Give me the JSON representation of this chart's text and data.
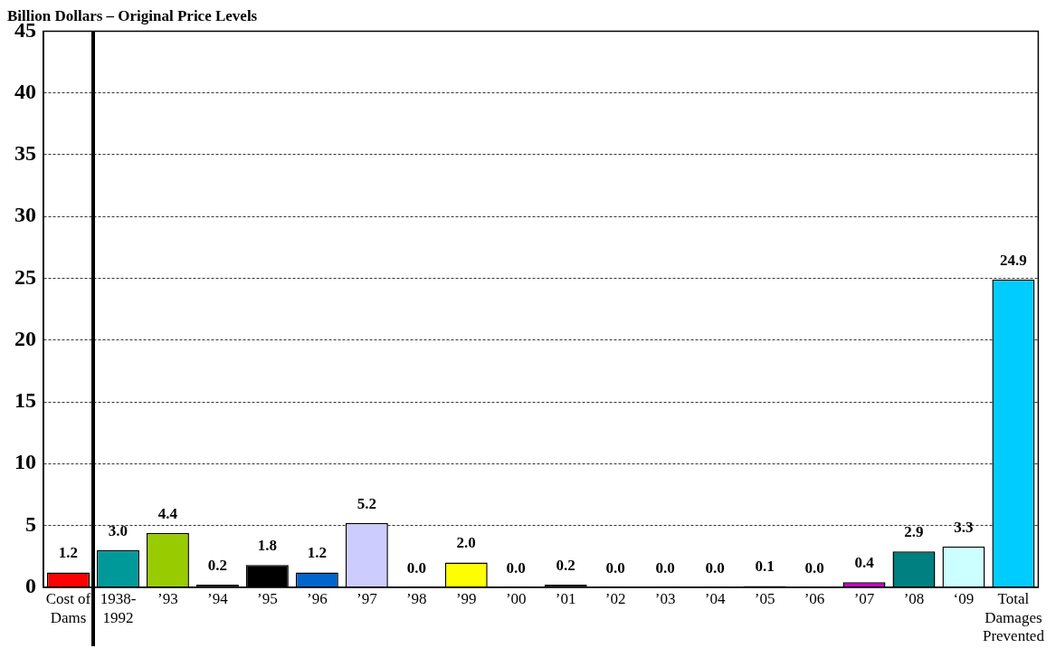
{
  "chart_data": {
    "type": "bar",
    "title": "Billion Dollars – Original Price Levels",
    "categories": [
      "Cost of Dams",
      "1938-1992",
      "’93",
      "’94",
      "’95",
      "’96",
      "’97",
      "’98",
      "’99",
      "’00",
      "’01",
      "’02",
      "’03",
      "’04",
      "’05",
      "’06",
      "’07",
      "’08",
      "‘09",
      "Total Damages Prevented"
    ],
    "values": [
      1.2,
      3.0,
      4.4,
      0.2,
      1.8,
      1.2,
      5.2,
      0.0,
      2.0,
      0.0,
      0.2,
      0.0,
      0.0,
      0.0,
      0.1,
      0.0,
      0.4,
      2.9,
      3.3,
      24.9
    ],
    "colors": [
      "#ff0000",
      "#009999",
      "#99cc00",
      "#000000",
      "#000000",
      "#0066cc",
      "#ccccff",
      "#000000",
      "#ffff00",
      "#000000",
      "#000000",
      "#000000",
      "#000000",
      "#000000",
      "#000000",
      "#000000",
      "#cc00cc",
      "#008080",
      "#ccffff",
      "#00ccff"
    ],
    "value_labels": [
      "1.2",
      "3.0",
      "4.4",
      "0.2",
      "1.8",
      "1.2",
      "5.2",
      "0.0",
      "2.0",
      "0.0",
      "0.2",
      "0.0",
      "0.0",
      "0.0",
      "0.1",
      "0.0",
      "0.4",
      "2.9",
      "3.3",
      "24.9"
    ],
    "ylim": [
      0,
      45
    ],
    "yticks": [
      0,
      5,
      10,
      15,
      20,
      25,
      30,
      35,
      40,
      45
    ],
    "grid": "y",
    "legend": false
  }
}
